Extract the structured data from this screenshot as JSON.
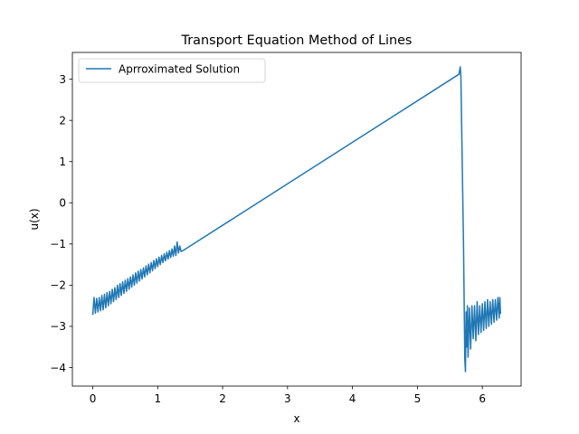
{
  "chart_data": {
    "type": "line",
    "title": "Transport Equation Method of Lines",
    "xlabel": "x",
    "ylabel": "u(x)",
    "xlim": [
      -0.314,
      6.597
    ],
    "ylim": [
      -4.45,
      3.65
    ],
    "xticks": [
      0,
      1,
      2,
      3,
      4,
      5,
      6
    ],
    "yticks": [
      -4,
      -3,
      -2,
      -1,
      0,
      1,
      2,
      3
    ],
    "grid": false,
    "legend_position": "top-left",
    "series": [
      {
        "name": "Aprroximated Solution",
        "color": "#1f77b4",
        "x": [
          0.0,
          0.02,
          0.04,
          0.06,
          0.08,
          0.1,
          0.12,
          0.14,
          0.16,
          0.18,
          0.2,
          0.22,
          0.24,
          0.26,
          0.28,
          0.3,
          0.32,
          0.34,
          0.36,
          0.38,
          0.4,
          0.42,
          0.44,
          0.46,
          0.48,
          0.5,
          0.52,
          0.54,
          0.56,
          0.58,
          0.6,
          0.62,
          0.64,
          0.66,
          0.68,
          0.7,
          0.72,
          0.74,
          0.76,
          0.78,
          0.8,
          0.82,
          0.84,
          0.86,
          0.88,
          0.9,
          0.92,
          0.94,
          0.96,
          0.98,
          1.0,
          1.02,
          1.04,
          1.06,
          1.08,
          1.1,
          1.12,
          1.14,
          1.16,
          1.18,
          1.2,
          1.22,
          1.24,
          1.26,
          1.28,
          1.3,
          1.32,
          1.34,
          1.36,
          1.4,
          1.45,
          5.62,
          5.64,
          5.66,
          5.67,
          5.69,
          5.71,
          5.73,
          5.74,
          5.75,
          5.76,
          5.77,
          5.78,
          5.8,
          5.82,
          5.84,
          5.86,
          5.88,
          5.9,
          5.92,
          5.94,
          5.96,
          5.98,
          6.0,
          6.02,
          6.04,
          6.06,
          6.08,
          6.1,
          6.12,
          6.14,
          6.16,
          6.18,
          6.2,
          6.22,
          6.24,
          6.26,
          6.27,
          6.28
        ],
        "y": [
          -2.72,
          -2.3,
          -2.68,
          -2.32,
          -2.65,
          -2.3,
          -2.62,
          -2.25,
          -2.6,
          -2.22,
          -2.55,
          -2.18,
          -2.5,
          -2.15,
          -2.45,
          -2.1,
          -2.4,
          -2.06,
          -2.35,
          -2.0,
          -2.3,
          -1.96,
          -2.25,
          -1.92,
          -2.2,
          -1.88,
          -2.15,
          -1.84,
          -2.1,
          -1.8,
          -2.05,
          -1.75,
          -2.0,
          -1.7,
          -1.95,
          -1.66,
          -1.9,
          -1.62,
          -1.85,
          -1.58,
          -1.8,
          -1.53,
          -1.75,
          -1.49,
          -1.7,
          -1.45,
          -1.65,
          -1.4,
          -1.6,
          -1.36,
          -1.55,
          -1.32,
          -1.5,
          -1.28,
          -1.45,
          -1.24,
          -1.41,
          -1.2,
          -1.37,
          -1.16,
          -1.33,
          -1.12,
          -1.3,
          -1.05,
          -1.28,
          -0.95,
          -1.22,
          -1.05,
          -1.18,
          -1.15,
          -1.1,
          3.1,
          3.12,
          3.3,
          3.05,
          1.0,
          -1.0,
          -3.8,
          -4.1,
          -2.65,
          -3.5,
          -2.5,
          -3.75,
          -2.55,
          -3.55,
          -2.5,
          -3.3,
          -2.5,
          -3.35,
          -2.4,
          -3.2,
          -2.5,
          -3.15,
          -2.45,
          -3.1,
          -2.4,
          -3.05,
          -2.35,
          -3.0,
          -2.4,
          -2.95,
          -2.35,
          -2.9,
          -2.35,
          -2.85,
          -2.3,
          -2.8,
          -2.3,
          -2.7
        ]
      }
    ]
  }
}
